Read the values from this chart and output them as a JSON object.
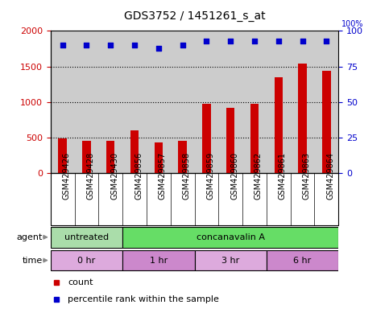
{
  "title": "GDS3752 / 1451261_s_at",
  "samples": [
    "GSM429426",
    "GSM429428",
    "GSM429430",
    "GSM429856",
    "GSM429857",
    "GSM429858",
    "GSM429859",
    "GSM429860",
    "GSM429862",
    "GSM429861",
    "GSM429863",
    "GSM429864"
  ],
  "counts": [
    490,
    455,
    450,
    600,
    430,
    450,
    970,
    920,
    970,
    1350,
    1540,
    1440
  ],
  "percentile_ranks": [
    90,
    90,
    90,
    90,
    88,
    90,
    93,
    93,
    93,
    93,
    93,
    93
  ],
  "ylim_left": [
    0,
    2000
  ],
  "ylim_right": [
    0,
    100
  ],
  "yticks_left": [
    0,
    500,
    1000,
    1500,
    2000
  ],
  "yticks_right": [
    0,
    25,
    50,
    75,
    100
  ],
  "count_color": "#cc0000",
  "percentile_color": "#0000cc",
  "bar_bg_color": "#cccccc",
  "agent_row": [
    {
      "label": "untreated",
      "start": 0,
      "end": 3,
      "color": "#aaddaa"
    },
    {
      "label": "concanavalin A",
      "start": 3,
      "end": 12,
      "color": "#66dd66"
    }
  ],
  "time_row": [
    {
      "label": "0 hr",
      "start": 0,
      "end": 3,
      "color": "#ddaadd"
    },
    {
      "label": "1 hr",
      "start": 3,
      "end": 6,
      "color": "#cc88cc"
    },
    {
      "label": "3 hr",
      "start": 6,
      "end": 9,
      "color": "#ddaadd"
    },
    {
      "label": "6 hr",
      "start": 9,
      "end": 12,
      "color": "#cc88cc"
    }
  ],
  "dotted_grid_color": "#000000",
  "background_color": "#ffffff",
  "figsize": [
    4.83,
    3.84
  ],
  "dpi": 100
}
